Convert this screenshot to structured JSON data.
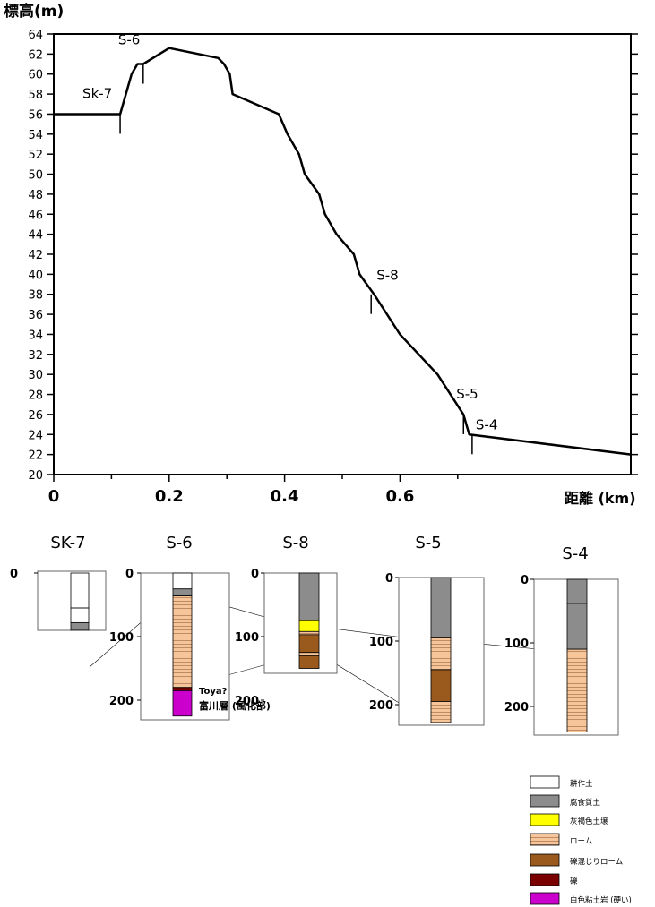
{
  "chart_data": {
    "type": "line",
    "ylabel": "標高(m)",
    "xlabel": "距離 (km)",
    "xlim": [
      0,
      1.0
    ],
    "ylim": [
      20,
      64
    ],
    "x_ticks": [
      0,
      0.2,
      0.4,
      0.6
    ],
    "x_tick_labels": [
      "0",
      "0.2",
      "0.4",
      "0.6"
    ],
    "y_ticks": [
      20,
      22,
      24,
      26,
      28,
      30,
      32,
      34,
      36,
      38,
      40,
      42,
      44,
      46,
      48,
      50,
      52,
      54,
      56,
      58,
      60,
      62,
      64
    ],
    "profile": {
      "x": [
        0,
        0.11,
        0.115,
        0.125,
        0.135,
        0.145,
        0.155,
        0.2,
        0.285,
        0.295,
        0.305,
        0.31,
        0.39,
        0.405,
        0.425,
        0.435,
        0.46,
        0.47,
        0.49,
        0.52,
        0.53,
        0.555,
        0.6,
        0.665,
        0.71,
        0.72,
        1.0
      ],
      "y": [
        56,
        56,
        56,
        58,
        60,
        61,
        61,
        62.6,
        61.6,
        61,
        60,
        58,
        56,
        54,
        52,
        50,
        48,
        46,
        44,
        42,
        40,
        38,
        34,
        30,
        26,
        24,
        22
      ]
    },
    "boreholes": [
      {
        "name": "Sk-7",
        "x": 0.115,
        "ground": 56
      },
      {
        "name": "S-6",
        "x": 0.155,
        "ground": 61
      },
      {
        "name": "S-8",
        "x": 0.55,
        "ground": 38
      },
      {
        "name": "S-5",
        "x": 0.71,
        "ground": 26
      },
      {
        "name": "S-4",
        "x": 0.725,
        "ground": 24
      }
    ]
  },
  "columns": {
    "ticks": [
      "0",
      "100",
      "200"
    ],
    "annotations": {
      "toya": "Toya?",
      "tomikawa": "富川層 (風化部)"
    },
    "logs": [
      {
        "name": "SK-7",
        "depth": 90,
        "show_ticks": false,
        "show_zero": true,
        "layers": [
          {
            "from": 0,
            "to": 55,
            "type": "tilled"
          },
          {
            "from": 55,
            "to": 78,
            "type": "none"
          },
          {
            "from": 78,
            "to": 90,
            "type": "fill"
          }
        ]
      },
      {
        "name": "S-6",
        "depth": 225,
        "show_ticks": true,
        "show_zero": true,
        "layers": [
          {
            "from": 0,
            "to": 25,
            "type": "none"
          },
          {
            "from": 25,
            "to": 36,
            "type": "fill"
          },
          {
            "from": 36,
            "to": 180,
            "type": "loam"
          },
          {
            "from": 180,
            "to": 185,
            "type": "gravel"
          },
          {
            "from": 185,
            "to": 225,
            "type": "clay"
          }
        ]
      },
      {
        "name": "S-8",
        "depth": 150,
        "show_ticks": true,
        "show_zero": true,
        "layers": [
          {
            "from": 0,
            "to": 75,
            "type": "fill"
          },
          {
            "from": 75,
            "to": 92,
            "type": "yellow"
          },
          {
            "from": 92,
            "to": 97,
            "type": "loam"
          },
          {
            "from": 97,
            "to": 125,
            "type": "gravelly"
          },
          {
            "from": 125,
            "to": 130,
            "type": "loam"
          },
          {
            "from": 130,
            "to": 150,
            "type": "gravelly"
          }
        ]
      },
      {
        "name": "S-5",
        "depth": 228,
        "show_ticks": true,
        "show_zero": true,
        "layers": [
          {
            "from": 0,
            "to": 95,
            "type": "fill"
          },
          {
            "from": 95,
            "to": 145,
            "type": "loam"
          },
          {
            "from": 145,
            "to": 195,
            "type": "gravelly"
          },
          {
            "from": 195,
            "to": 228,
            "type": "loam"
          }
        ]
      },
      {
        "name": "S-4",
        "depth": 240,
        "show_ticks": true,
        "show_zero": true,
        "layers": [
          {
            "from": 0,
            "to": 38,
            "type": "fill"
          },
          {
            "from": 38,
            "to": 110,
            "type": "fill"
          },
          {
            "from": 110,
            "to": 240,
            "type": "loam"
          }
        ]
      }
    ]
  },
  "legend": [
    {
      "type": "tilled",
      "label": "耕作土",
      "color": "#ffffff"
    },
    {
      "type": "fill",
      "label": "腐食質土",
      "color": "#8c8c8c"
    },
    {
      "type": "yellow",
      "label": "灰褐色土壌",
      "color": "#ffff00"
    },
    {
      "type": "loam",
      "label": "ローム",
      "color": "#f7c59a"
    },
    {
      "type": "gravelly",
      "label": "礫混じりローム",
      "color": "#9a5a1e"
    },
    {
      "type": "gravel",
      "label": "礫",
      "color": "#7a0000"
    },
    {
      "type": "clay",
      "label": "白色粘土岩 (硬い)",
      "color": "#cc00cc"
    }
  ],
  "colors": {
    "axis": "#000000",
    "loam_stripe": "#b8845e",
    "correlation_line": "#000000"
  }
}
